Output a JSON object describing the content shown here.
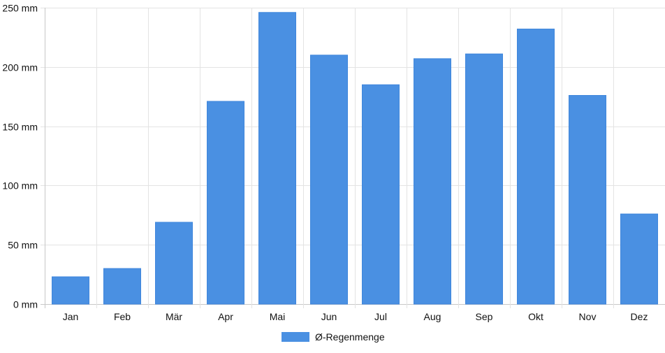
{
  "chart_data": {
    "type": "bar",
    "title": "",
    "xlabel": "",
    "ylabel": "",
    "categories": [
      "Jan",
      "Feb",
      "Mär",
      "Apr",
      "Mai",
      "Jun",
      "Jul",
      "Aug",
      "Sep",
      "Okt",
      "Nov",
      "Dez"
    ],
    "series": [
      {
        "name": "Ø-Regenmenge",
        "values": [
          23,
          30,
          69,
          171,
          246,
          210,
          185,
          207,
          211,
          232,
          176,
          76
        ],
        "color": "#4a90e2"
      }
    ],
    "ylim": [
      0,
      250
    ],
    "y_ticks": [
      0,
      50,
      100,
      150,
      200,
      250
    ],
    "y_tick_labels": [
      "0 mm",
      "50 mm",
      "100 mm",
      "150 mm",
      "200 mm",
      "250 mm"
    ],
    "grid": true,
    "legend": {
      "position": "bottom",
      "label": "Ø-Regenmenge"
    }
  }
}
